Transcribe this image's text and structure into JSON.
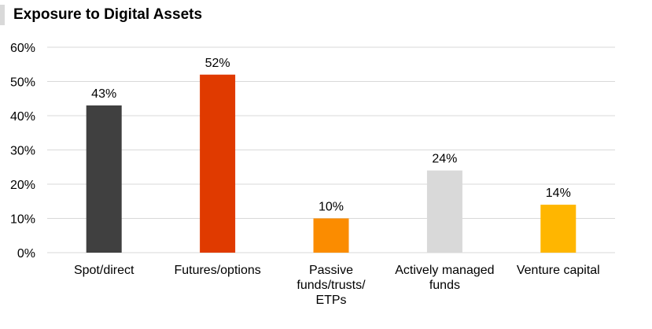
{
  "chart_data": {
    "type": "bar",
    "title": "Exposure to Digital Assets",
    "categories": [
      [
        "Spot/direct"
      ],
      [
        "Futures/options"
      ],
      [
        "Passive",
        "funds/trusts/",
        "ETPs"
      ],
      [
        "Actively managed",
        "funds"
      ],
      [
        "Venture capital"
      ]
    ],
    "values": [
      43,
      52,
      10,
      24,
      14
    ],
    "data_labels": [
      "43%",
      "52%",
      "10%",
      "24%",
      "14%"
    ],
    "colors": [
      "#404040",
      "#e03a00",
      "#fb8c00",
      "#d9d9d9",
      "#ffb600"
    ],
    "y_ticks": [
      "0%",
      "10%",
      "20%",
      "30%",
      "40%",
      "50%",
      "60%"
    ],
    "ylim": [
      0,
      60
    ],
    "grid": true,
    "gridline_color": "#d9d9d9",
    "legend": "none"
  }
}
